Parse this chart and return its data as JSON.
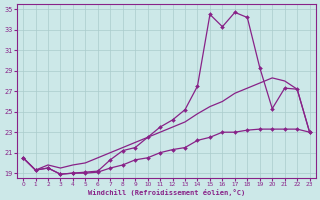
{
  "background_color": "#cce8e8",
  "grid_color": "#aacccc",
  "line_color": "#882288",
  "x": [
    0,
    1,
    2,
    3,
    4,
    5,
    6,
    7,
    8,
    9,
    10,
    11,
    12,
    13,
    14,
    15,
    16,
    17,
    18,
    19,
    20,
    21,
    22,
    23
  ],
  "line_top": [
    20.5,
    19.3,
    19.5,
    18.9,
    19.0,
    19.1,
    19.2,
    20.3,
    21.2,
    21.5,
    22.5,
    23.5,
    24.2,
    25.2,
    27.5,
    34.5,
    33.3,
    34.7,
    34.2,
    29.3,
    25.3,
    27.3,
    27.2,
    23.0
  ],
  "line_mid": [
    20.5,
    19.3,
    19.8,
    19.5,
    19.8,
    20.0,
    20.5,
    21.0,
    21.5,
    22.0,
    22.5,
    23.0,
    23.5,
    24.0,
    24.8,
    25.5,
    26.0,
    26.8,
    27.3,
    27.8,
    28.3,
    28.0,
    27.2,
    23.0
  ],
  "line_bot": [
    20.5,
    19.3,
    19.5,
    18.9,
    19.0,
    19.0,
    19.1,
    19.5,
    19.8,
    20.3,
    20.5,
    21.0,
    21.3,
    21.5,
    22.2,
    22.5,
    23.0,
    23.0,
    23.2,
    23.3,
    23.3,
    23.3,
    23.3,
    23.0
  ],
  "xlabel": "Windchill (Refroidissement éolien,°C)",
  "ylim_min": 18.5,
  "ylim_max": 35.5,
  "xlim_min": -0.5,
  "xlim_max": 23.5,
  "ytick_vals": [
    19,
    21,
    23,
    25,
    27,
    29,
    31,
    33,
    35
  ],
  "xtick_vals": [
    0,
    1,
    2,
    3,
    4,
    5,
    6,
    7,
    8,
    9,
    10,
    11,
    12,
    13,
    14,
    15,
    16,
    17,
    18,
    19,
    20,
    21,
    22,
    23
  ]
}
